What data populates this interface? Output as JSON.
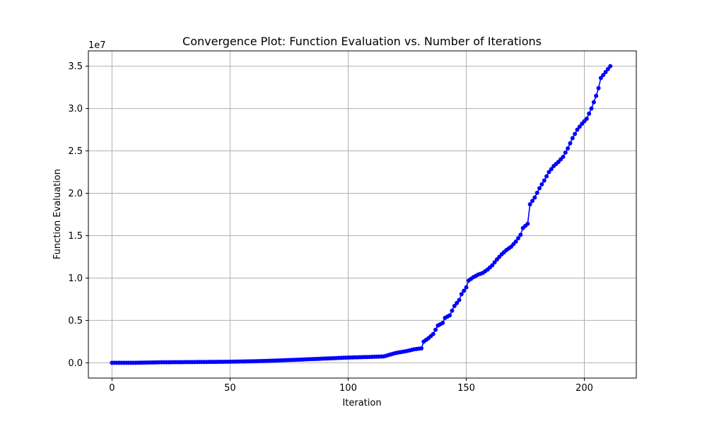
{
  "chart_data": {
    "type": "line",
    "title": "Convergence Plot: Function Evaluation vs. Number of Iterations",
    "xlabel": "Iteration",
    "ylabel": "Function Evaluation",
    "y_offset_text": "1e7",
    "xlim": [
      -10,
      222
    ],
    "ylim": [
      -1800000,
      36800000
    ],
    "xticks": [
      0,
      50,
      100,
      150,
      200
    ],
    "xtick_labels": [
      "0",
      "50",
      "100",
      "150",
      "200"
    ],
    "yticks": [
      0,
      5000000,
      10000000,
      15000000,
      20000000,
      25000000,
      30000000,
      35000000
    ],
    "ytick_labels": [
      "0.0",
      "0.5",
      "1.0",
      "1.5",
      "2.0",
      "2.5",
      "3.0",
      "3.5"
    ],
    "grid": true,
    "legend": "none",
    "series_color": "#0000ff",
    "marker": "circle",
    "x_start": 0,
    "x_step": 1,
    "anchors": [
      [
        0,
        0
      ],
      [
        10,
        5000
      ],
      [
        20,
        60000
      ],
      [
        40,
        100000
      ],
      [
        50,
        130000
      ],
      [
        60,
        180000
      ],
      [
        70,
        270000
      ],
      [
        80,
        380000
      ],
      [
        90,
        500000
      ],
      [
        100,
        620000
      ],
      [
        110,
        700000
      ],
      [
        115,
        750000
      ],
      [
        120,
        1150000
      ],
      [
        125,
        1400000
      ],
      [
        128,
        1600000
      ],
      [
        131,
        1700000
      ],
      [
        132,
        2500000
      ],
      [
        134,
        2900000
      ],
      [
        136,
        3400000
      ],
      [
        138,
        4400000
      ],
      [
        140,
        4700000
      ],
      [
        141,
        5300000
      ],
      [
        143,
        5600000
      ],
      [
        145,
        6700000
      ],
      [
        147,
        7400000
      ],
      [
        148,
        8100000
      ],
      [
        150,
        8900000
      ],
      [
        151,
        9700000
      ],
      [
        153,
        10100000
      ],
      [
        155,
        10400000
      ],
      [
        157,
        10600000
      ],
      [
        159,
        11000000
      ],
      [
        161,
        11500000
      ],
      [
        163,
        12200000
      ],
      [
        165,
        12800000
      ],
      [
        167,
        13300000
      ],
      [
        169,
        13700000
      ],
      [
        171,
        14300000
      ],
      [
        173,
        15100000
      ],
      [
        174,
        15900000
      ],
      [
        176,
        16400000
      ],
      [
        177,
        18700000
      ],
      [
        179,
        19500000
      ],
      [
        181,
        20600000
      ],
      [
        183,
        21500000
      ],
      [
        185,
        22500000
      ],
      [
        187,
        23200000
      ],
      [
        189,
        23700000
      ],
      [
        191,
        24300000
      ],
      [
        193,
        25300000
      ],
      [
        195,
        26500000
      ],
      [
        197,
        27500000
      ],
      [
        199,
        28200000
      ],
      [
        201,
        28800000
      ],
      [
        203,
        30000000
      ],
      [
        205,
        31500000
      ],
      [
        206,
        32400000
      ],
      [
        207,
        33600000
      ],
      [
        209,
        34300000
      ],
      [
        211,
        35000000
      ]
    ]
  }
}
